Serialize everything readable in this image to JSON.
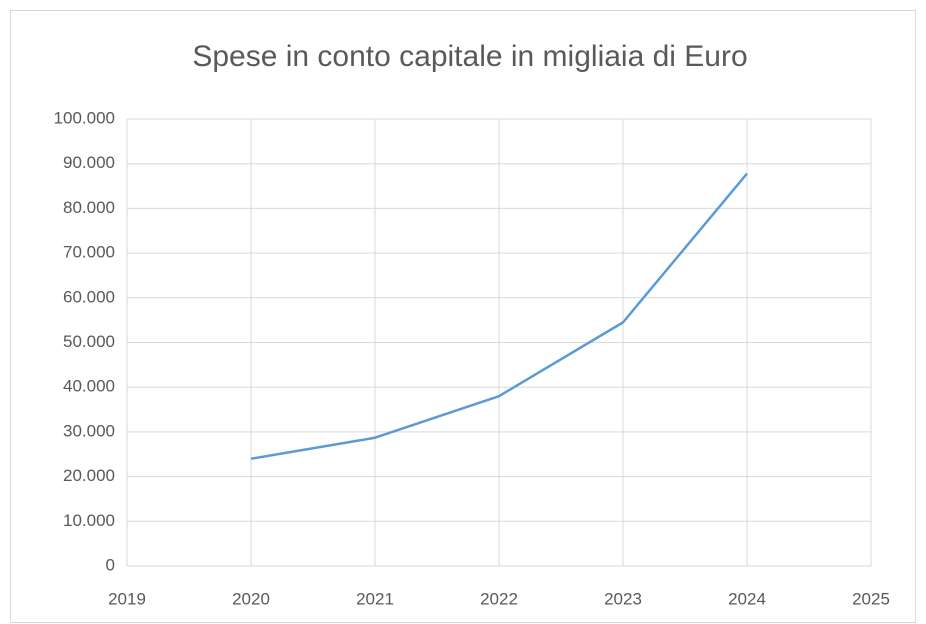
{
  "chart_data": {
    "type": "line",
    "title": "Spese in conto capitale in migliaia di Euro",
    "x": [
      2020,
      2021,
      2022,
      2023,
      2024
    ],
    "values": [
      24000,
      28700,
      38000,
      54500,
      87800
    ],
    "color": "#5b9bd5",
    "xlim": [
      2019,
      2025
    ],
    "xticks": [
      2019,
      2020,
      2021,
      2022,
      2023,
      2024,
      2025
    ],
    "ylim": [
      0,
      100000
    ],
    "yticks": [
      0,
      {
        "value": 10000,
        "label": "10.000"
      },
      {
        "value": 20000,
        "label": "20.000"
      },
      {
        "value": 30000,
        "label": "30.000"
      },
      {
        "value": 40000,
        "label": "40.000"
      },
      {
        "value": 50000,
        "label": "50.000"
      },
      {
        "value": 60000,
        "label": "60.000"
      },
      {
        "value": 70000,
        "label": "70.000"
      },
      {
        "value": 80000,
        "label": "80.000"
      },
      {
        "value": 90000,
        "label": "90.000"
      },
      {
        "value": 100000,
        "label": "100.000"
      }
    ],
    "grid": true
  }
}
